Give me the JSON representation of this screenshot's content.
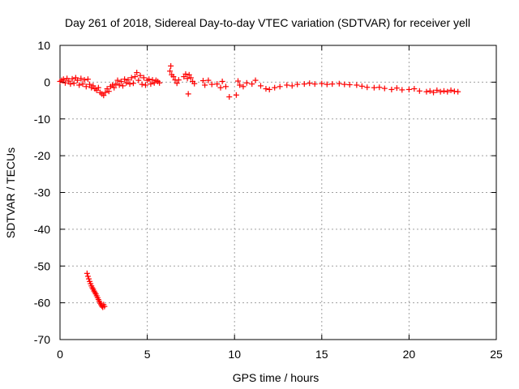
{
  "chart_data": {
    "type": "scatter",
    "title": "Day 261 of 2018, Sidereal Day-to-day VTEC variation (SDTVAR) for receiver yell",
    "xlabel": "GPS time / hours",
    "ylabel": "SDTVAR / TECUs",
    "xlim": [
      0,
      25
    ],
    "ylim": [
      -70,
      10
    ],
    "xticks": [
      0,
      5,
      10,
      15,
      20,
      25
    ],
    "yticks": [
      10,
      0,
      -10,
      -20,
      -30,
      -40,
      -50,
      -60,
      -70
    ],
    "grid": true,
    "marker": "+",
    "colors": {
      "series": "#ff0000",
      "grid": "#a0a0a0",
      "axis": "#000000"
    },
    "series": [
      {
        "name": "SDTVAR",
        "x": [
          0.0,
          0.1,
          0.2,
          0.3,
          0.4,
          0.5,
          0.6,
          0.7,
          0.8,
          0.9,
          1.0,
          1.1,
          1.2,
          1.3,
          1.4,
          1.5,
          1.6,
          1.7,
          1.8,
          1.9,
          2.0,
          2.1,
          2.2,
          2.3,
          2.4,
          2.5,
          2.6,
          2.7,
          2.8,
          2.9,
          3.0,
          3.1,
          3.2,
          3.3,
          3.4,
          3.5,
          3.6,
          3.7,
          3.8,
          3.9,
          4.0,
          4.1,
          4.2,
          4.3,
          4.4,
          4.5,
          4.6,
          4.7,
          4.8,
          4.9,
          5.0,
          5.1,
          5.2,
          5.3,
          5.4,
          5.5,
          5.6,
          5.7,
          6.3,
          6.35,
          6.4,
          6.5,
          6.6,
          6.7,
          6.8,
          7.1,
          7.2,
          7.3,
          7.4,
          7.5,
          7.6,
          7.7,
          7.35,
          8.2,
          8.3,
          8.5,
          8.7,
          9.0,
          9.2,
          9.3,
          9.5,
          9.7,
          10.1,
          10.2,
          10.3,
          10.5,
          10.7,
          11.0,
          11.2,
          11.5,
          11.8,
          12.0,
          12.3,
          12.6,
          13.0,
          13.3,
          13.6,
          14.0,
          14.3,
          14.6,
          15.0,
          15.3,
          15.6,
          16.0,
          16.3,
          16.6,
          17.0,
          17.3,
          17.6,
          18.0,
          18.3,
          18.6,
          19.0,
          19.3,
          19.6,
          20.0,
          20.3,
          20.6,
          21.0,
          21.2,
          21.4,
          21.6,
          21.8,
          22.0,
          22.2,
          22.4,
          22.6,
          22.8,
          1.55,
          1.6,
          1.65,
          1.7,
          1.75,
          1.8,
          1.85,
          1.9,
          1.95,
          2.0,
          2.05,
          2.1,
          2.15,
          2.2,
          2.25,
          2.3,
          2.35,
          2.4,
          2.45,
          2.5,
          2.55
        ],
        "values": [
          0.2,
          0.5,
          0.8,
          -0.2,
          1.0,
          0.3,
          -0.5,
          0.9,
          -0.3,
          1.2,
          0.5,
          -0.8,
          1.0,
          -0.5,
          0.6,
          -1.2,
          0.8,
          -0.6,
          -1.5,
          -1.0,
          -1.8,
          -2.2,
          -1.5,
          -2.8,
          -3.2,
          -3.6,
          -2.8,
          -1.8,
          -2.5,
          -1.2,
          -0.8,
          -1.5,
          -0.5,
          0.5,
          -0.8,
          0.2,
          -1.0,
          0.8,
          -0.2,
          0.6,
          -0.5,
          1.2,
          -0.3,
          1.5,
          2.6,
          0.5,
          1.8,
          -0.6,
          1.2,
          -0.8,
          0.5,
          0.8,
          -0.5,
          0.6,
          -0.2,
          0.5,
          0.2,
          -0.2,
          3.0,
          4.4,
          2.0,
          1.5,
          0.6,
          -0.3,
          0.6,
          1.5,
          2.2,
          1.0,
          2.0,
          1.2,
          0.2,
          -0.4,
          -3.2,
          0.4,
          -0.8,
          0.5,
          -0.6,
          -0.5,
          -1.5,
          0.2,
          -1.2,
          -4.0,
          -3.5,
          0.3,
          -0.8,
          -1.2,
          -0.2,
          -0.5,
          0.5,
          -1.0,
          -1.8,
          -2.0,
          -1.5,
          -1.2,
          -0.8,
          -1.0,
          -0.6,
          -0.5,
          -0.3,
          -0.5,
          -0.4,
          -0.6,
          -0.5,
          -0.4,
          -0.6,
          -0.7,
          -0.8,
          -1.1,
          -1.4,
          -1.5,
          -1.4,
          -1.7,
          -2.0,
          -1.6,
          -2.1,
          -2.0,
          -1.8,
          -2.4,
          -2.6,
          -2.4,
          -2.8,
          -2.2,
          -2.6,
          -2.4,
          -2.6,
          -2.2,
          -2.5,
          -2.6,
          -52.0,
          -52.8,
          -53.5,
          -54.2,
          -54.8,
          -55.4,
          -55.9,
          -56.3,
          -56.8,
          -57.2,
          -57.6,
          -58.1,
          -58.6,
          -59.1,
          -59.6,
          -60.1,
          -60.5,
          -60.9,
          -61.2,
          -60.5,
          -61.0
        ]
      }
    ]
  }
}
